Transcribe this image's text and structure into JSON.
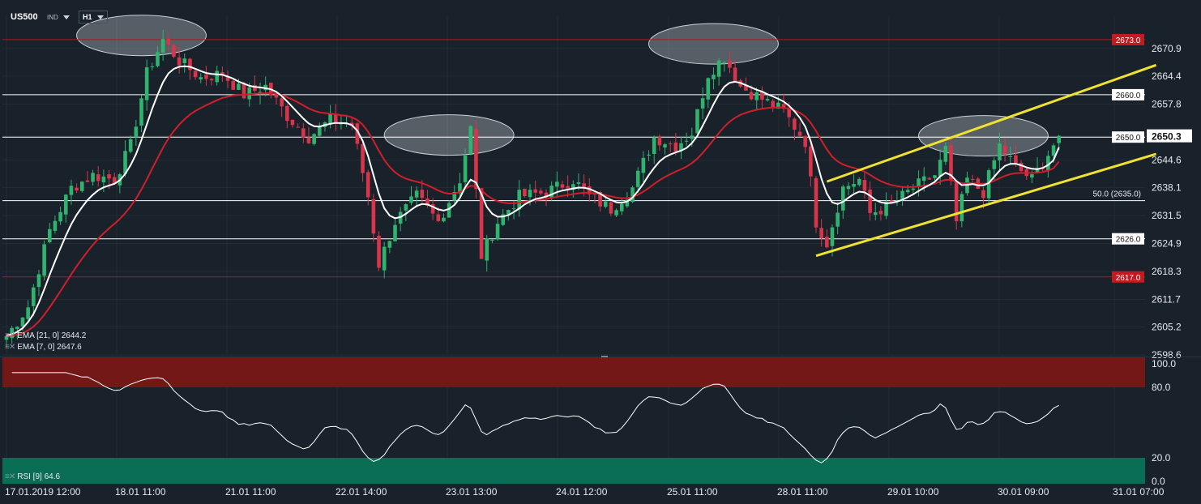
{
  "symbol": "US500",
  "instrument_type": "IND",
  "timeframe": "H1",
  "colors": {
    "background": "#19212b",
    "bull": "#2fb36e",
    "bear": "#d8354a",
    "ema_fast": "#ffffff",
    "ema_slow": "#cf1f2a",
    "channel": "#f2e230",
    "resistance": "#a81c1f",
    "rsi_overbought": "#731717",
    "rsi_oversold": "#0a6e54"
  },
  "indicators": {
    "ema21_label": "EMA [21, 0] 2644.2",
    "ema7_label": "EMA [7, 0] 2647.6",
    "rsi_label": "RSI [9] 64.6"
  },
  "chart_data": [
    {
      "type": "candlestick",
      "title": "",
      "ylim": [
        2598.6,
        2677.0
      ],
      "price_ticks": [
        "2670.9",
        "2664.4",
        "2657.8",
        "2650.3",
        "2644.6",
        "2638.1",
        "2631.5",
        "2624.9",
        "2618.3",
        "2611.7",
        "2605.2",
        "2598.6"
      ],
      "x_ticks": [
        "17.01.2019 12:00",
        "18.01 11:00",
        "21.01 11:00",
        "22.01 14:00",
        "23.01 13:00",
        "24.01 12:00",
        "25.01 11:00",
        "28.01 11:00",
        "29.01 10:00",
        "30.01 09:00",
        "31.01 07:00"
      ],
      "horizontal_levels": [
        {
          "value": 2673.0,
          "label": "2673.0",
          "style": "red"
        },
        {
          "value": 2660.0,
          "label": "2660.0",
          "style": "white"
        },
        {
          "value": 2650.0,
          "label": "2650.0",
          "style": "white"
        },
        {
          "value": 2635.0,
          "label": "50.0 (2635.0)",
          "style": "fib"
        },
        {
          "value": 2626.0,
          "label": "2626.0",
          "style": "white"
        },
        {
          "value": 2617.0,
          "label": "2617.0",
          "style": "red"
        }
      ],
      "current_price": "2650.3",
      "last_ema21": 2644.2,
      "last_ema7": 2647.6,
      "channel_lines": [
        {
          "from": {
            "bar": 152,
            "price": 2639.5
          },
          "to": {
            "bar": 213,
            "price": 2667.0
          }
        },
        {
          "from": {
            "bar": 150,
            "price": 2622.0
          },
          "to": {
            "bar": 213,
            "price": 2646.0
          }
        }
      ],
      "highlight_zones": [
        {
          "bar": 25,
          "price": 2674.0
        },
        {
          "bar": 82,
          "price": 2650.5
        },
        {
          "bar": 131,
          "price": 2672.0
        },
        {
          "bar": 181,
          "price": 2650.3
        }
      ],
      "anchors": [
        {
          "bar": 0,
          "price": 2603
        },
        {
          "bar": 4,
          "price": 2610
        },
        {
          "bar": 8,
          "price": 2628
        },
        {
          "bar": 12,
          "price": 2638
        },
        {
          "bar": 16,
          "price": 2641
        },
        {
          "bar": 20,
          "price": 2640
        },
        {
          "bar": 23,
          "price": 2648
        },
        {
          "bar": 26,
          "price": 2665
        },
        {
          "bar": 29,
          "price": 2673
        },
        {
          "bar": 32,
          "price": 2668
        },
        {
          "bar": 36,
          "price": 2664
        },
        {
          "bar": 40,
          "price": 2665
        },
        {
          "bar": 44,
          "price": 2660
        },
        {
          "bar": 48,
          "price": 2662
        },
        {
          "bar": 52,
          "price": 2655
        },
        {
          "bar": 56,
          "price": 2650
        },
        {
          "bar": 60,
          "price": 2654
        },
        {
          "bar": 64,
          "price": 2653
        },
        {
          "bar": 67,
          "price": 2636
        },
        {
          "bar": 69,
          "price": 2620
        },
        {
          "bar": 72,
          "price": 2630
        },
        {
          "bar": 76,
          "price": 2636
        },
        {
          "bar": 80,
          "price": 2630
        },
        {
          "bar": 84,
          "price": 2640
        },
        {
          "bar": 86,
          "price": 2652
        },
        {
          "bar": 88,
          "price": 2622
        },
        {
          "bar": 91,
          "price": 2630
        },
        {
          "bar": 95,
          "price": 2636
        },
        {
          "bar": 100,
          "price": 2637
        },
        {
          "bar": 105,
          "price": 2640
        },
        {
          "bar": 108,
          "price": 2636
        },
        {
          "bar": 112,
          "price": 2633
        },
        {
          "bar": 116,
          "price": 2638
        },
        {
          "bar": 120,
          "price": 2650
        },
        {
          "bar": 124,
          "price": 2648
        },
        {
          "bar": 127,
          "price": 2651
        },
        {
          "bar": 130,
          "price": 2665
        },
        {
          "bar": 133,
          "price": 2669
        },
        {
          "bar": 136,
          "price": 2662
        },
        {
          "bar": 140,
          "price": 2659
        },
        {
          "bar": 144,
          "price": 2656
        },
        {
          "bar": 148,
          "price": 2649
        },
        {
          "bar": 150,
          "price": 2630
        },
        {
          "bar": 152,
          "price": 2625
        },
        {
          "bar": 155,
          "price": 2638
        },
        {
          "bar": 158,
          "price": 2640
        },
        {
          "bar": 160,
          "price": 2632
        },
        {
          "bar": 164,
          "price": 2634
        },
        {
          "bar": 168,
          "price": 2638
        },
        {
          "bar": 172,
          "price": 2641
        },
        {
          "bar": 174,
          "price": 2647
        },
        {
          "bar": 176,
          "price": 2630
        },
        {
          "bar": 178,
          "price": 2640
        },
        {
          "bar": 181,
          "price": 2637
        },
        {
          "bar": 184,
          "price": 2648
        },
        {
          "bar": 187,
          "price": 2643
        },
        {
          "bar": 190,
          "price": 2640
        },
        {
          "bar": 193,
          "price": 2646
        },
        {
          "bar": 195,
          "price": 2650.3
        }
      ]
    },
    {
      "type": "line",
      "title": "RSI",
      "ylim": [
        0,
        100
      ],
      "y_ticks": [
        "100.0",
        "80.0",
        "20.0",
        "0.0"
      ],
      "overbought": 80,
      "oversold": 20,
      "last_value": 64.6
    }
  ]
}
